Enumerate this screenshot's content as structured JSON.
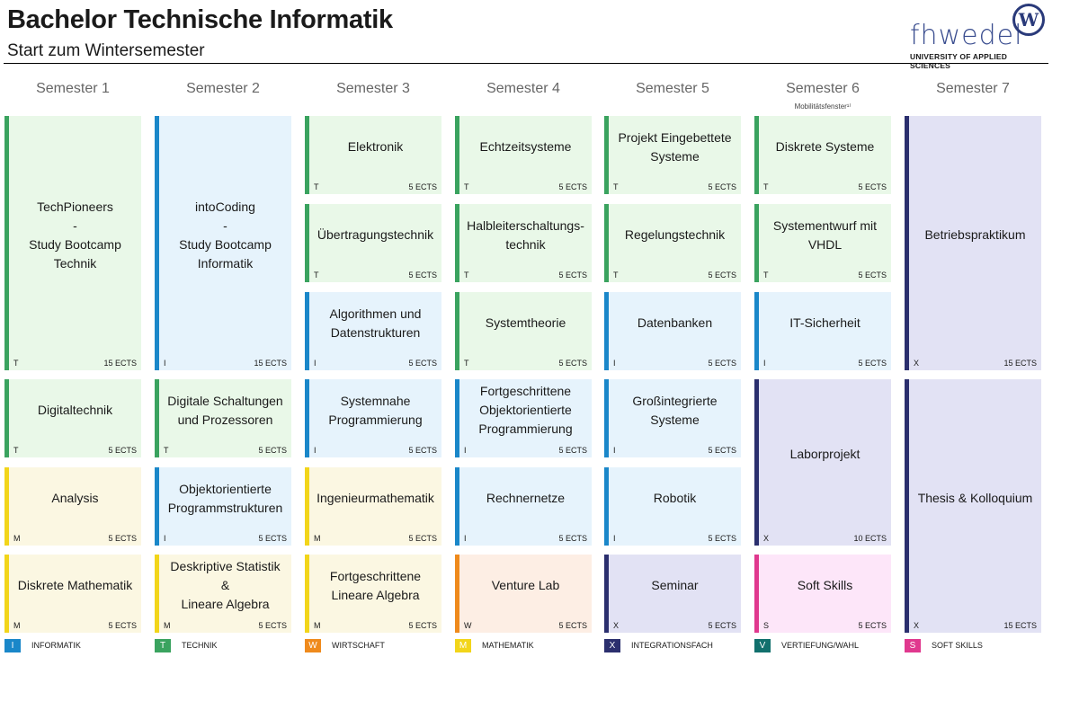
{
  "header": {
    "title": "Bachelor Technische Informatik",
    "subtitle": "Start zum Wintersemester"
  },
  "logo": {
    "word": "fhwedel",
    "badge": "W",
    "tagline": "UNIVERSITY OF APPLIED SCIENCES"
  },
  "colors": {
    "I": {
      "border": "#1a87c9",
      "bg": "#e6f3fc"
    },
    "T": {
      "border": "#3aa35f",
      "bg": "#e9f8e8"
    },
    "W": {
      "border": "#ef8a1c",
      "bg": "#fdeee4"
    },
    "M": {
      "border": "#f2d51a",
      "bg": "#fbf7e2"
    },
    "X": {
      "border": "#2b2f6e",
      "bg": "#e2e2f4"
    },
    "V": {
      "border": "#11706d",
      "bg": "#e1f1f0"
    },
    "S": {
      "border": "#e0388e",
      "bg": "#fde6f9"
    }
  },
  "semesters": [
    {
      "label": "Semester 1",
      "note": ""
    },
    {
      "label": "Semester 2",
      "note": ""
    },
    {
      "label": "Semester 3",
      "note": ""
    },
    {
      "label": "Semester 4",
      "note": ""
    },
    {
      "label": "Semester 5",
      "note": ""
    },
    {
      "label": "Semester 6",
      "note": "Mobilitätsfenster¹⁾"
    },
    {
      "label": "Semester 7",
      "note": ""
    }
  ],
  "modules": [
    {
      "col": 0,
      "row": 0,
      "span": 3,
      "name": "TechPioneers\n-\nStudy Bootcamp\nTechnik",
      "cat": "T",
      "ects": "15 ECTS"
    },
    {
      "col": 0,
      "row": 3,
      "span": 1,
      "name": "Digitaltechnik",
      "cat": "T",
      "ects": "5 ECTS"
    },
    {
      "col": 0,
      "row": 4,
      "span": 1,
      "name": "Analysis",
      "cat": "M",
      "ects": "5 ECTS"
    },
    {
      "col": 0,
      "row": 5,
      "span": 1,
      "name": "Diskrete Mathematik",
      "cat": "M",
      "ects": "5 ECTS"
    },
    {
      "col": 1,
      "row": 0,
      "span": 3,
      "name": "intoCoding\n-\nStudy Bootcamp\nInformatik",
      "cat": "I",
      "ects": "15 ECTS"
    },
    {
      "col": 1,
      "row": 3,
      "span": 1,
      "name": "Digitale Schaltungen\nund Prozessoren",
      "cat": "T",
      "ects": "5 ECTS"
    },
    {
      "col": 1,
      "row": 4,
      "span": 1,
      "name": "Objektorientierte\nProgrammstrukturen",
      "cat": "I",
      "ects": "5 ECTS"
    },
    {
      "col": 1,
      "row": 5,
      "span": 1,
      "name": "Deskriptive Statistik &\nLineare Algebra",
      "cat": "M",
      "ects": "5 ECTS"
    },
    {
      "col": 2,
      "row": 0,
      "span": 1,
      "name": "Elektronik",
      "cat": "T",
      "ects": "5 ECTS"
    },
    {
      "col": 2,
      "row": 1,
      "span": 1,
      "name": "Übertragungstechnik",
      "cat": "T",
      "ects": "5 ECTS"
    },
    {
      "col": 2,
      "row": 2,
      "span": 1,
      "name": "Algorithmen und\nDatenstrukturen",
      "cat": "I",
      "ects": "5 ECTS"
    },
    {
      "col": 2,
      "row": 3,
      "span": 1,
      "name": "Systemnahe\nProgrammierung",
      "cat": "I",
      "ects": "5 ECTS"
    },
    {
      "col": 2,
      "row": 4,
      "span": 1,
      "name": "Ingenieurmathematik",
      "cat": "M",
      "ects": "5 ECTS"
    },
    {
      "col": 2,
      "row": 5,
      "span": 1,
      "name": "Fortgeschrittene\nLineare Algebra",
      "cat": "M",
      "ects": "5 ECTS"
    },
    {
      "col": 3,
      "row": 0,
      "span": 1,
      "name": "Echtzeitsysteme",
      "cat": "T",
      "ects": "5 ECTS"
    },
    {
      "col": 3,
      "row": 1,
      "span": 1,
      "name": "Halbleiterschaltungs-\ntechnik",
      "cat": "T",
      "ects": "5 ECTS"
    },
    {
      "col": 3,
      "row": 2,
      "span": 1,
      "name": "Systemtheorie",
      "cat": "T",
      "ects": "5 ECTS"
    },
    {
      "col": 3,
      "row": 3,
      "span": 1,
      "name": "Fortgeschrittene\nObjektorientierte\nProgrammierung",
      "cat": "I",
      "ects": "5 ECTS"
    },
    {
      "col": 3,
      "row": 4,
      "span": 1,
      "name": "Rechnernetze",
      "cat": "I",
      "ects": "5 ECTS"
    },
    {
      "col": 3,
      "row": 5,
      "span": 1,
      "name": "Venture Lab",
      "cat": "W",
      "ects": "5 ECTS"
    },
    {
      "col": 4,
      "row": 0,
      "span": 1,
      "name": "Projekt Eingebettete\nSysteme",
      "cat": "T",
      "ects": "5 ECTS"
    },
    {
      "col": 4,
      "row": 1,
      "span": 1,
      "name": "Regelungstechnik",
      "cat": "T",
      "ects": "5 ECTS"
    },
    {
      "col": 4,
      "row": 2,
      "span": 1,
      "name": "Datenbanken",
      "cat": "I",
      "ects": "5 ECTS"
    },
    {
      "col": 4,
      "row": 3,
      "span": 1,
      "name": "Großintegrierte\nSysteme",
      "cat": "I",
      "ects": "5 ECTS"
    },
    {
      "col": 4,
      "row": 4,
      "span": 1,
      "name": "Robotik",
      "cat": "I",
      "ects": "5 ECTS"
    },
    {
      "col": 4,
      "row": 5,
      "span": 1,
      "name": "Seminar",
      "cat": "X",
      "ects": "5 ECTS"
    },
    {
      "col": 5,
      "row": 0,
      "span": 1,
      "name": "Diskrete Systeme",
      "cat": "T",
      "ects": "5 ECTS"
    },
    {
      "col": 5,
      "row": 1,
      "span": 1,
      "name": "Systementwurf mit\nVHDL",
      "cat": "T",
      "ects": "5 ECTS"
    },
    {
      "col": 5,
      "row": 2,
      "span": 1,
      "name": "IT-Sicherheit",
      "cat": "I",
      "ects": "5 ECTS"
    },
    {
      "col": 5,
      "row": 3,
      "span": 2,
      "name": "Laborprojekt",
      "cat": "X",
      "ects": "10 ECTS"
    },
    {
      "col": 5,
      "row": 5,
      "span": 1,
      "name": "Soft Skills",
      "cat": "S",
      "ects": "5 ECTS"
    },
    {
      "col": 6,
      "row": 0,
      "span": 3,
      "name": "Betriebspraktikum",
      "cat": "X",
      "ects": "15 ECTS"
    },
    {
      "col": 6,
      "row": 3,
      "span": 3,
      "name": "Thesis & Kolloquium",
      "cat": "X",
      "ects": "15 ECTS"
    }
  ],
  "legend": [
    {
      "code": "I",
      "label": "INFORMATIK"
    },
    {
      "code": "T",
      "label": "TECHNIK"
    },
    {
      "code": "W",
      "label": "WIRTSCHAFT"
    },
    {
      "code": "M",
      "label": "MATHEMATIK"
    },
    {
      "code": "X",
      "label": "INTEGRATIONSFACH"
    },
    {
      "code": "V",
      "label": "VERTIEFUNG/WAHL"
    },
    {
      "code": "S",
      "label": "SOFT SKILLS"
    }
  ]
}
